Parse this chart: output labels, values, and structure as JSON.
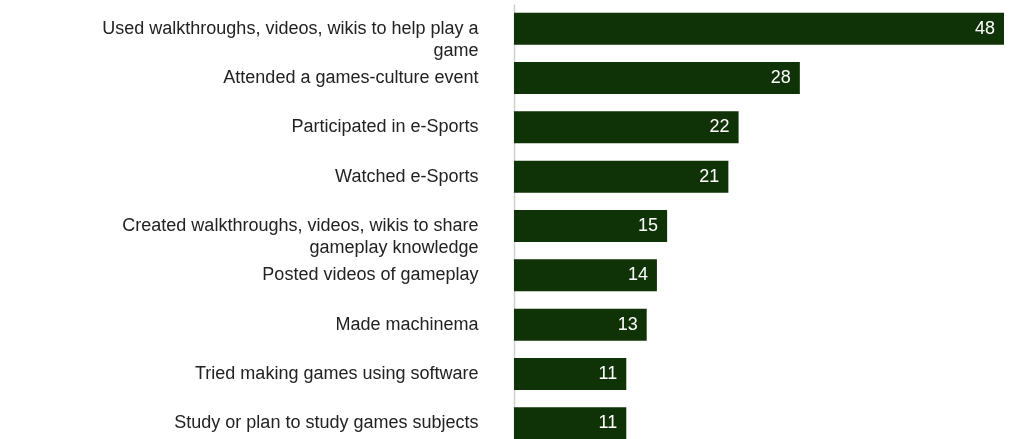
{
  "chart_data": {
    "type": "bar",
    "orientation": "horizontal",
    "categories": [
      "Used walkthroughs, videos, wikis to help play a game",
      "Attended a games-culture event",
      "Participated in e-Sports",
      "Watched e-Sports",
      "Created walkthroughs, videos, wikis to share gameplay knowledge",
      "Posted videos of gameplay",
      "Made machinema",
      "Tried making games using software",
      "Study or plan to study games subjects"
    ],
    "values": [
      48,
      28,
      22,
      21,
      15,
      14,
      13,
      11,
      11
    ],
    "color": "#0f3306",
    "data_labels": true
  }
}
